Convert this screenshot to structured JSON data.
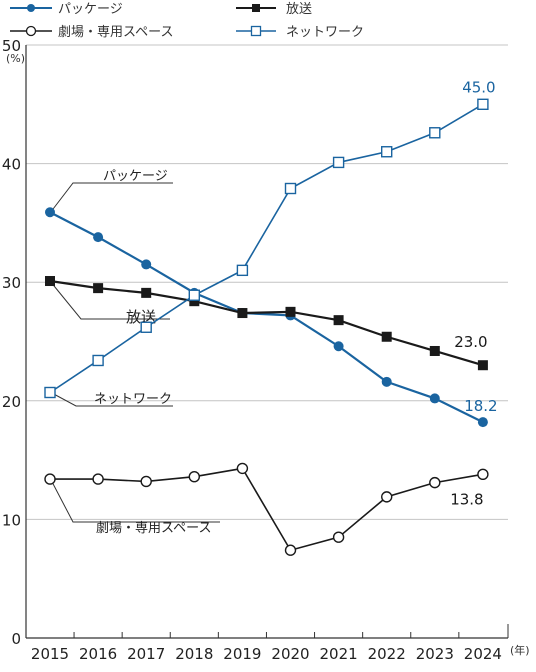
{
  "chart_data": {
    "type": "line",
    "title": "",
    "xlabel": "",
    "ylabel": "",
    "y_unit": "(%)",
    "x_unit": "(年)",
    "x": [
      2015,
      2016,
      2017,
      2018,
      2019,
      2020,
      2021,
      2022,
      2023,
      2024
    ],
    "ylim": [
      0,
      50
    ],
    "yticks": [
      0,
      10,
      20,
      30,
      40,
      50
    ],
    "grid": true,
    "legend_position": "top",
    "series": [
      {
        "name": "パッケージ",
        "key": "package",
        "color": "#1a64a0",
        "marker": "circle-filled",
        "values": [
          35.9,
          33.8,
          31.5,
          29.1,
          27.4,
          27.2,
          24.6,
          21.6,
          20.2,
          18.2
        ],
        "end_label": "18.2",
        "inline_label": "パッケージ"
      },
      {
        "name": "放送",
        "key": "broadcast",
        "color": "#1a1a1a",
        "marker": "square-filled",
        "values": [
          30.1,
          29.5,
          29.1,
          28.4,
          27.4,
          27.5,
          26.8,
          25.4,
          24.2,
          23.0
        ],
        "end_label": "23.0",
        "inline_label": "放送"
      },
      {
        "name": "劇場・専用スペース",
        "key": "theater",
        "color": "#1a1a1a",
        "marker": "circle-open",
        "values": [
          13.4,
          13.4,
          13.2,
          13.6,
          14.3,
          7.4,
          8.5,
          11.9,
          13.1,
          13.8
        ],
        "end_label": "13.8",
        "inline_label": "劇場・専用スペース"
      },
      {
        "name": "ネットワーク",
        "key": "network",
        "color": "#1a64a0",
        "marker": "square-open",
        "values": [
          20.7,
          23.4,
          26.2,
          28.9,
          31.0,
          37.9,
          40.1,
          41.0,
          42.6,
          45.0
        ],
        "end_label": "45.0",
        "inline_label": "ネットワーク"
      }
    ]
  }
}
